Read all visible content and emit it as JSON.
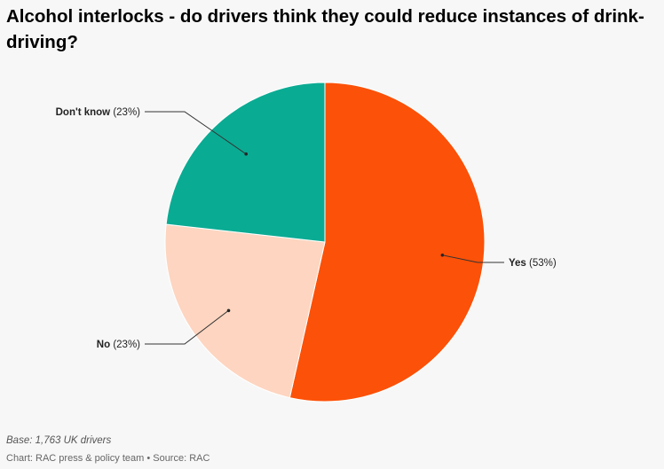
{
  "title": "Alcohol interlocks - do drivers think they could reduce instances of drink-driving?",
  "footer": {
    "base": "Base: 1,763 UK drivers",
    "credit": "Chart: RAC press & policy team • Source: RAC"
  },
  "chart_data": {
    "type": "pie",
    "title": "Alcohol interlocks - do drivers think they could reduce instances of drink-driving?",
    "slices": [
      {
        "name": "Yes",
        "value": 53,
        "label": "(53%)",
        "color": "#fc5108"
      },
      {
        "name": "No",
        "value": 23,
        "label": "(23%)",
        "color": "#fdd5c0"
      },
      {
        "name": "Don't know",
        "value": 23,
        "label": "(23%)",
        "color": "#0aab93"
      }
    ]
  }
}
